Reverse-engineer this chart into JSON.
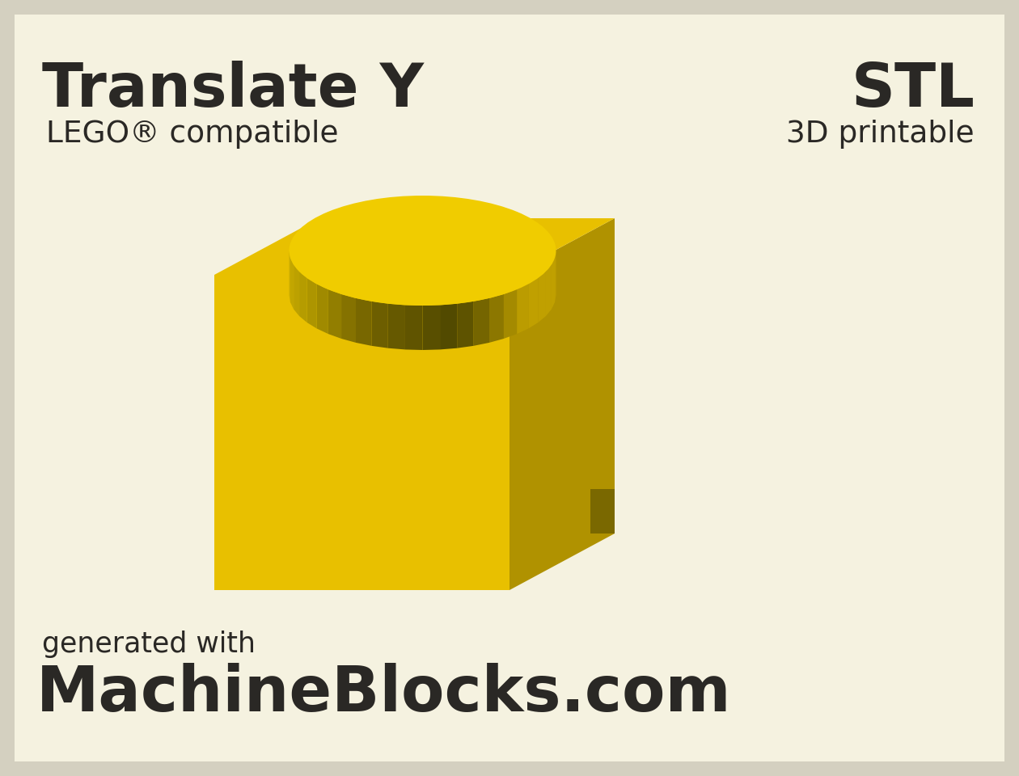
{
  "bg_outer": "#d4d0c0",
  "bg_inner": "#f5f2e0",
  "title_left": "Translate Y",
  "subtitle_left": "LEGO® compatible",
  "title_right": "STL",
  "subtitle_right": "3D printable",
  "footer_small": "generated with",
  "footer_large": "MachineBlocks.com",
  "text_color": "#2a2825",
  "brick_front_color": "#e8c000",
  "brick_right_color": "#b09200",
  "brick_top_color": "#e8c000",
  "stud_top_color": "#f0cc00",
  "stud_band_colors": [
    "#b09200",
    "#a08200",
    "#907000",
    "#806000",
    "#706000",
    "#808000",
    "#907800",
    "#a08800",
    "#b09200",
    "#c0a200"
  ],
  "figsize": [
    12.6,
    9.6
  ],
  "dpi": 100
}
